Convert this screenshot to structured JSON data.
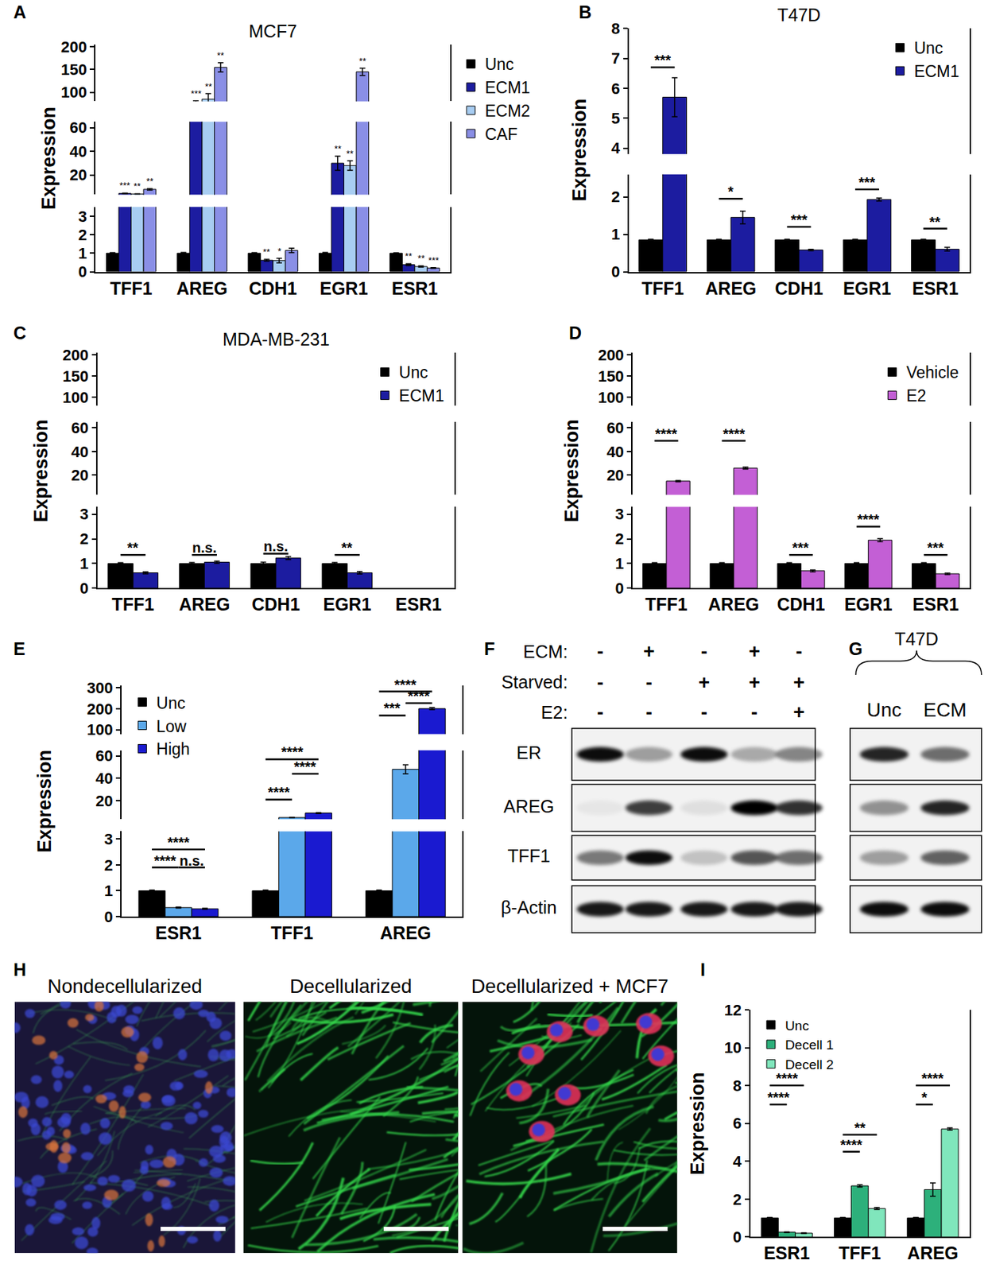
{
  "chart_data": [
    {
      "panel": "A",
      "type": "bar",
      "title": "MCF7",
      "y_label": "Expression",
      "categories": [
        "TFF1",
        "AREG",
        "CDH1",
        "EGR1",
        "ESR1"
      ],
      "y_segments": [
        {
          "ylim": [
            0,
            3.5
          ],
          "yticks": [
            0,
            1,
            2,
            3
          ]
        },
        {
          "ylim": [
            3.5,
            65
          ],
          "yticks": [
            20,
            40,
            60
          ]
        },
        {
          "ylim": [
            80,
            205
          ],
          "yticks": [
            100,
            150,
            200
          ]
        }
      ],
      "legend": "right",
      "series": [
        {
          "name": "Unc",
          "color": "#000000",
          "values": [
            1,
            1,
            1,
            1,
            1
          ],
          "errors": [
            0.03,
            0.04,
            0.03,
            0.04,
            0.02
          ]
        },
        {
          "name": "ECM1",
          "color": "#1c1ca0",
          "values": [
            4.5,
            75,
            0.62,
            30,
            0.38
          ],
          "errors": [
            0.3,
            6,
            0.05,
            6,
            0.05
          ],
          "significance": [
            "***",
            "***",
            "**",
            "**",
            "**"
          ]
        },
        {
          "name": "ECM2",
          "color": "#a8cdf2",
          "values": [
            4,
            85,
            0.6,
            28,
            0.28
          ],
          "errors": [
            0.2,
            12,
            0.12,
            4,
            0.03
          ],
          "significance": [
            "**",
            "**",
            "*",
            "**",
            "**"
          ]
        },
        {
          "name": "CAF",
          "color": "#8a8fe6",
          "values": [
            8,
            155,
            1.15,
            145,
            0.2
          ],
          "errors": [
            0.6,
            10,
            0.12,
            8,
            0.02
          ],
          "significance": [
            "**",
            "**",
            null,
            "**",
            "***"
          ]
        }
      ]
    },
    {
      "panel": "B",
      "type": "bar",
      "title": "T47D",
      "y_label": "Expression",
      "categories": [
        "TFF1",
        "AREG",
        "CDH1",
        "EGR1",
        "ESR1"
      ],
      "y_segments": [
        {
          "ylim": [
            0,
            2.6
          ],
          "yticks": [
            0,
            1,
            2
          ]
        },
        {
          "ylim": [
            3.8,
            8
          ],
          "yticks": [
            4,
            5,
            6,
            7,
            8
          ]
        }
      ],
      "legend": "top right",
      "series": [
        {
          "name": "Unc",
          "color": "#000000",
          "values": [
            0.85,
            0.85,
            0.85,
            0.85,
            0.85
          ],
          "errors": [
            0.02,
            0.02,
            0.02,
            0.02,
            0.02
          ]
        },
        {
          "name": "ECM1",
          "color": "#1c1ca0",
          "values": [
            5.7,
            1.45,
            0.58,
            1.93,
            0.6
          ],
          "errors": [
            0.65,
            0.17,
            0.02,
            0.04,
            0.05
          ]
        }
      ],
      "comparisons": [
        {
          "category": "TFF1",
          "series": [
            "Unc",
            "ECM1"
          ],
          "y": 6.7,
          "label": "***"
        },
        {
          "category": "AREG",
          "series": [
            "Unc",
            "ECM1"
          ],
          "y": 1.95,
          "label": "*"
        },
        {
          "category": "CDH1",
          "series": [
            "Unc",
            "ECM1"
          ],
          "y": 1.2,
          "label": "***"
        },
        {
          "category": "EGR1",
          "series": [
            "Unc",
            "ECM1"
          ],
          "y": 2.2,
          "label": "***"
        },
        {
          "category": "ESR1",
          "series": [
            "Unc",
            "ECM1"
          ],
          "y": 1.15,
          "label": "**"
        }
      ]
    },
    {
      "panel": "C",
      "type": "bar",
      "title": "MDA-MB-231",
      "y_label": "Expression",
      "categories": [
        "TFF1",
        "AREG",
        "CDH1",
        "EGR1",
        "ESR1"
      ],
      "y_segments": [
        {
          "ylim": [
            0,
            3.3
          ],
          "yticks": [
            0,
            1,
            2,
            3
          ]
        },
        {
          "ylim": [
            3.5,
            65
          ],
          "yticks": [
            20,
            40,
            60
          ]
        },
        {
          "ylim": [
            80,
            205
          ],
          "yticks": [
            100,
            150,
            200
          ]
        }
      ],
      "legend": "top right",
      "series": [
        {
          "name": "Unc",
          "color": "#000000",
          "values": [
            1,
            1,
            1,
            1,
            null
          ],
          "errors": [
            0.03,
            0.04,
            0.05,
            0.04,
            null
          ]
        },
        {
          "name": "ECM1",
          "color": "#1c1ca0",
          "values": [
            0.62,
            1.05,
            1.22,
            0.62,
            null
          ],
          "errors": [
            0.04,
            0.05,
            0.06,
            0.05,
            null
          ]
        }
      ],
      "comparisons": [
        {
          "category": "TFF1",
          "series": [
            "Unc",
            "ECM1"
          ],
          "y": 1.35,
          "label": "**"
        },
        {
          "category": "AREG",
          "series": [
            "Unc",
            "ECM1"
          ],
          "y": 1.35,
          "label": "n.s."
        },
        {
          "category": "CDH1",
          "series": [
            "Unc",
            "ECM1"
          ],
          "y": 1.4,
          "label": "n.s."
        },
        {
          "category": "EGR1",
          "series": [
            "Unc",
            "ECM1"
          ],
          "y": 1.35,
          "label": "**"
        }
      ]
    },
    {
      "panel": "D",
      "type": "bar",
      "y_label": "Expression",
      "categories": [
        "TFF1",
        "AREG",
        "CDH1",
        "EGR1",
        "ESR1"
      ],
      "y_segments": [
        {
          "ylim": [
            0,
            3.3
          ],
          "yticks": [
            0,
            1,
            2,
            3
          ]
        },
        {
          "ylim": [
            3.5,
            65
          ],
          "yticks": [
            20,
            40,
            60
          ]
        },
        {
          "ylim": [
            80,
            205
          ],
          "yticks": [
            100,
            150,
            200
          ]
        }
      ],
      "legend": "top right",
      "series": [
        {
          "name": "Vehicle",
          "color": "#000000",
          "values": [
            1,
            1,
            1,
            1,
            1
          ],
          "errors": [
            0.03,
            0.03,
            0.03,
            0.03,
            0.03
          ]
        },
        {
          "name": "E2",
          "color": "#c35fd5",
          "values": [
            15,
            26,
            0.7,
            1.95,
            0.58
          ],
          "errors": [
            0.5,
            0.8,
            0.04,
            0.06,
            0.03
          ]
        }
      ],
      "comparisons": [
        {
          "category": "TFF1",
          "series": [
            "Vehicle",
            "E2"
          ],
          "y": 49,
          "label": "****"
        },
        {
          "category": "AREG",
          "series": [
            "Vehicle",
            "E2"
          ],
          "y": 49,
          "label": "****"
        },
        {
          "category": "CDH1",
          "series": [
            "Vehicle",
            "E2"
          ],
          "y": 1.35,
          "label": "***"
        },
        {
          "category": "EGR1",
          "series": [
            "Vehicle",
            "E2"
          ],
          "y": 2.5,
          "label": "****"
        },
        {
          "category": "ESR1",
          "series": [
            "Vehicle",
            "E2"
          ],
          "y": 1.35,
          "label": "***"
        }
      ]
    },
    {
      "panel": "E",
      "type": "bar",
      "y_label": "Expression",
      "categories": [
        "ESR1",
        "TFF1",
        "AREG"
      ],
      "y_segments": [
        {
          "ylim": [
            0,
            3.3
          ],
          "yticks": [
            0,
            1,
            2,
            3
          ]
        },
        {
          "ylim": [
            3.5,
            65
          ],
          "yticks": [
            20,
            40,
            60
          ]
        },
        {
          "ylim": [
            80,
            310
          ],
          "yticks": [
            100,
            200,
            300
          ]
        }
      ],
      "legend": "top left",
      "series": [
        {
          "name": "Unc",
          "color": "#000000",
          "values": [
            1,
            1,
            1
          ],
          "errors": [
            0.03,
            0.03,
            0.03
          ]
        },
        {
          "name": "Low",
          "color": "#5ba8ea",
          "values": [
            0.35,
            5,
            48
          ],
          "errors": [
            0.02,
            0.2,
            4
          ]
        },
        {
          "name": "High",
          "color": "#1a1ad0",
          "values": [
            0.3,
            9,
            200
          ],
          "errors": [
            0.02,
            0.4,
            5
          ]
        }
      ],
      "comparisons": [
        {
          "category": "ESR1",
          "series": [
            "Unc",
            "High"
          ],
          "y": 2.6,
          "label": "****"
        },
        {
          "category": "ESR1",
          "series": [
            "Unc",
            "Low"
          ],
          "y": 1.9,
          "label": "****"
        },
        {
          "category": "ESR1",
          "series": [
            "Low",
            "High"
          ],
          "y": 1.9,
          "label": "n.s."
        },
        {
          "category": "TFF1",
          "series": [
            "Unc",
            "High"
          ],
          "y": 57,
          "label": "****"
        },
        {
          "category": "TFF1",
          "series": [
            "Low",
            "High"
          ],
          "y": 44,
          "label": "****"
        },
        {
          "category": "TFF1",
          "series": [
            "Unc",
            "Low"
          ],
          "y": 21,
          "label": "****"
        },
        {
          "category": "AREG",
          "series": [
            "Unc",
            "High"
          ],
          "y": 281,
          "label": "****"
        },
        {
          "category": "AREG",
          "series": [
            "Low",
            "High"
          ],
          "y": 226,
          "label": "****"
        },
        {
          "category": "AREG",
          "series": [
            "Unc",
            "Low"
          ],
          "y": 168,
          "label": "***"
        }
      ]
    },
    {
      "panel": "I",
      "type": "bar",
      "y_label": "Expression",
      "categories": [
        "ESR1",
        "TFF1",
        "AREG"
      ],
      "y_segments": [
        {
          "ylim": [
            0,
            12
          ],
          "yticks": [
            0,
            2,
            4,
            6,
            8,
            10,
            12
          ]
        }
      ],
      "legend": "top left",
      "series": [
        {
          "name": "Unc",
          "color": "#000000",
          "values": [
            1,
            1,
            1
          ],
          "errors": [
            0.03,
            0.03,
            0.03
          ]
        },
        {
          "name": "Decell 1",
          "color": "#2db07b",
          "values": [
            0.25,
            2.7,
            2.5
          ],
          "errors": [
            0.02,
            0.06,
            0.35
          ]
        },
        {
          "name": "Decell 2",
          "color": "#80e6bc",
          "values": [
            0.2,
            1.5,
            5.7
          ],
          "errors": [
            0.02,
            0.05,
            0.06
          ]
        }
      ],
      "comparisons": [
        {
          "category": "ESR1",
          "series": [
            "Unc",
            "Decell 2"
          ],
          "y": 8,
          "label": "****"
        },
        {
          "category": "ESR1",
          "series": [
            "Unc",
            "Decell 1"
          ],
          "y": 7,
          "label": "****"
        },
        {
          "category": "TFF1",
          "series": [
            "Unc",
            "Decell 2"
          ],
          "y": 5.4,
          "label": "**"
        },
        {
          "category": "TFF1",
          "series": [
            "Unc",
            "Decell 1"
          ],
          "y": 4.5,
          "label": "****"
        },
        {
          "category": "AREG",
          "series": [
            "Unc",
            "Decell 2"
          ],
          "y": 8,
          "label": "****"
        },
        {
          "category": "AREG",
          "series": [
            "Unc",
            "Decell 1"
          ],
          "y": 7,
          "label": "*"
        }
      ]
    }
  ],
  "blots": [
    {
      "panel": "F",
      "conditions": [
        {
          "label": "ECM:",
          "values": [
            "-",
            "+",
            "-",
            "+",
            "-"
          ]
        },
        {
          "label": "Starved:",
          "values": [
            "-",
            "-",
            "+",
            "+",
            "+"
          ]
        },
        {
          "label": "E2:",
          "values": [
            "-",
            "-",
            "-",
            "-",
            "+"
          ]
        }
      ],
      "rows": [
        {
          "label": "ER",
          "bands": [
            0.95,
            0.35,
            0.95,
            0.3,
            0.45
          ]
        },
        {
          "label": "AREG",
          "bands": [
            0.05,
            0.75,
            0.08,
            1.0,
            0.8
          ]
        },
        {
          "label": "TFF1",
          "bands": [
            0.5,
            0.95,
            0.2,
            0.65,
            0.55
          ]
        },
        {
          "label": "β-Actin",
          "bands": [
            0.9,
            0.9,
            0.9,
            0.9,
            0.9
          ]
        }
      ]
    },
    {
      "panel": "G",
      "title": "T47D",
      "lanes": [
        "Unc",
        "ECM"
      ],
      "rows": [
        {
          "bands": [
            0.85,
            0.55
          ]
        },
        {
          "bands": [
            0.4,
            0.85
          ]
        },
        {
          "bands": [
            0.35,
            0.6
          ]
        },
        {
          "bands": [
            0.95,
            0.95
          ]
        }
      ]
    }
  ],
  "images": {
    "panel": "H",
    "titles": [
      "Nondecellularized",
      "Decellularized",
      "Decellularized + MCF7"
    ]
  }
}
